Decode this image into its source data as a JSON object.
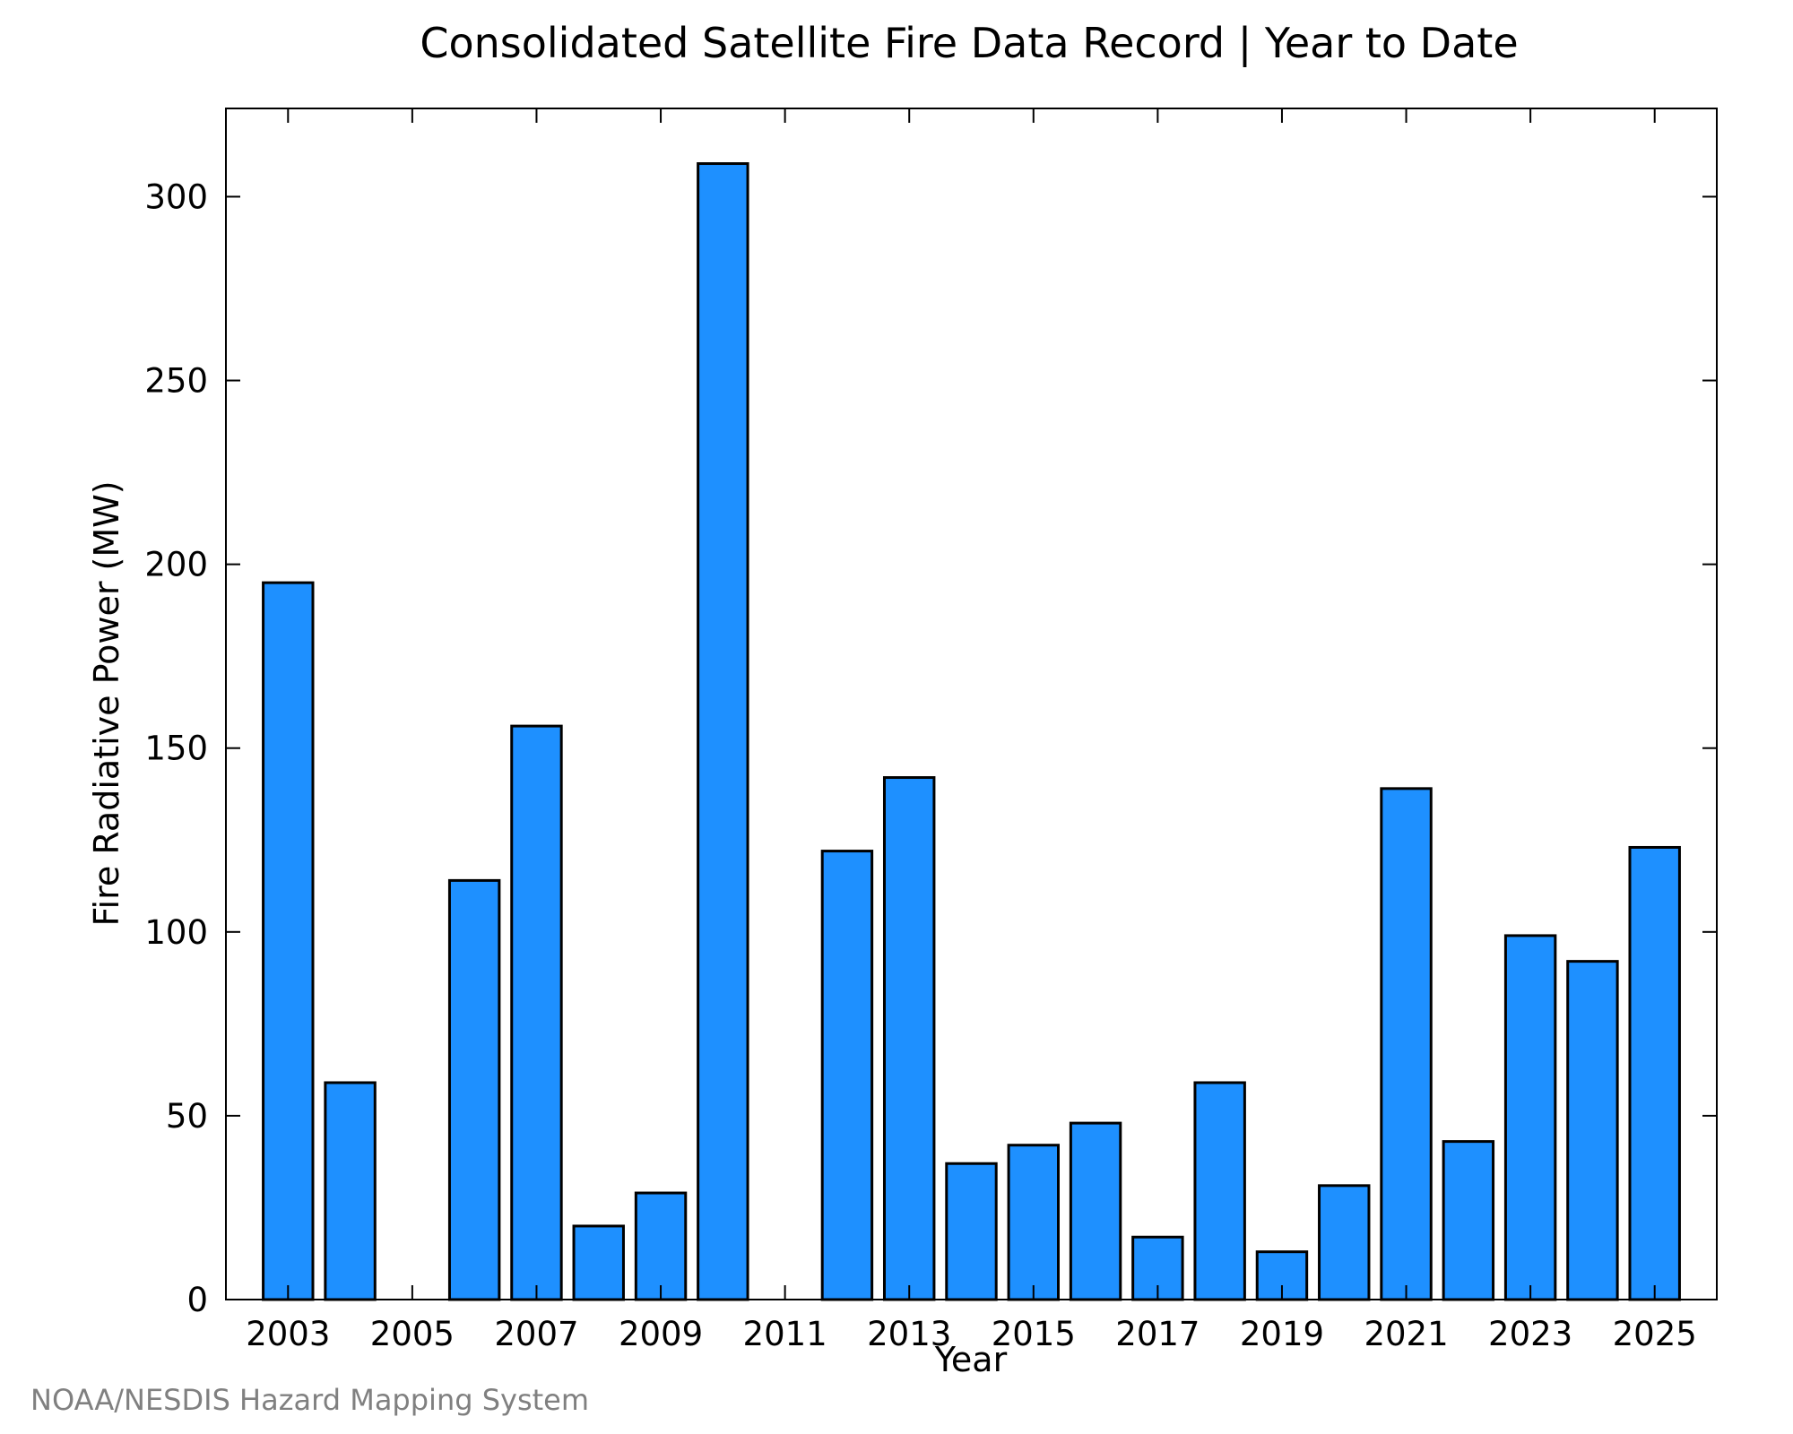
{
  "chart_data": {
    "type": "bar",
    "title": "Consolidated Satellite Fire Data Record | Year to Date",
    "xlabel": "Year",
    "ylabel": "Fire Radiative Power (MW)",
    "categories": [
      2003,
      2004,
      2005,
      2006,
      2007,
      2008,
      2009,
      2010,
      2011,
      2012,
      2013,
      2014,
      2015,
      2016,
      2017,
      2018,
      2019,
      2020,
      2021,
      2022,
      2023,
      2024,
      2025
    ],
    "values": [
      195,
      59,
      0,
      114,
      156,
      20,
      29,
      309,
      0,
      122,
      142,
      37,
      42,
      48,
      17,
      59,
      13,
      31,
      139,
      43,
      99,
      92,
      123
    ],
    "x_tick_labels": [
      "2003",
      "2005",
      "2007",
      "2009",
      "2011",
      "2013",
      "2015",
      "2017",
      "2019",
      "2021",
      "2023",
      "2025"
    ],
    "y_ticks": [
      0,
      50,
      100,
      150,
      200,
      250,
      300
    ],
    "xlim": [
      2002,
      2026
    ],
    "ylim": [
      0,
      324
    ],
    "grid": false,
    "bar_color": "#1e90ff",
    "footer": "NOAA/NESDIS Hazard Mapping System"
  }
}
